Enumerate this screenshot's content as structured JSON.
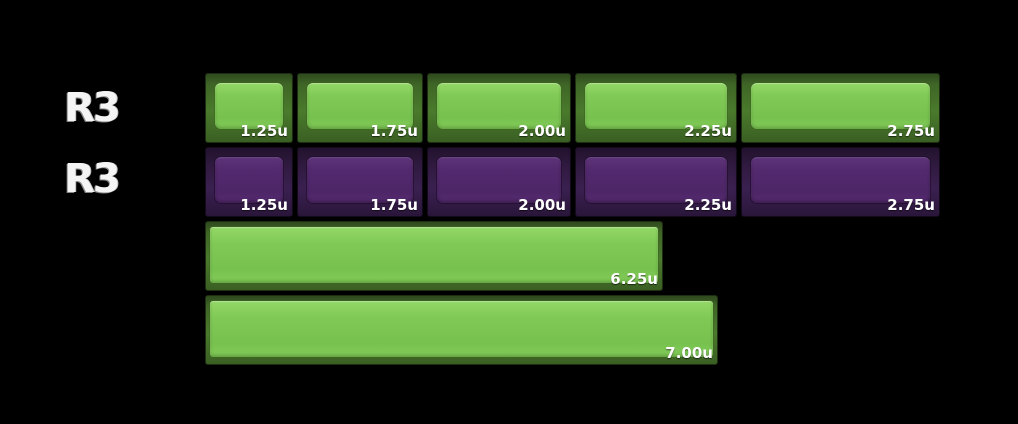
{
  "rows": [
    {
      "label": "R3",
      "color": "#7cc653",
      "keys": [
        "1.25u",
        "1.75u",
        "2.00u",
        "2.25u",
        "2.75u"
      ]
    },
    {
      "label": "R3",
      "color": "#512a6c",
      "keys": [
        "1.25u",
        "1.75u",
        "2.00u",
        "2.25u",
        "2.75u"
      ]
    }
  ],
  "spacebars": [
    {
      "size": "6.25u",
      "color": "#7cc653"
    },
    {
      "size": "7.00u",
      "color": "#7cc653"
    }
  ],
  "colors": {
    "background": "#000000",
    "green": "#7cc653",
    "purple": "#512a6c",
    "legend": "#ffffff"
  }
}
